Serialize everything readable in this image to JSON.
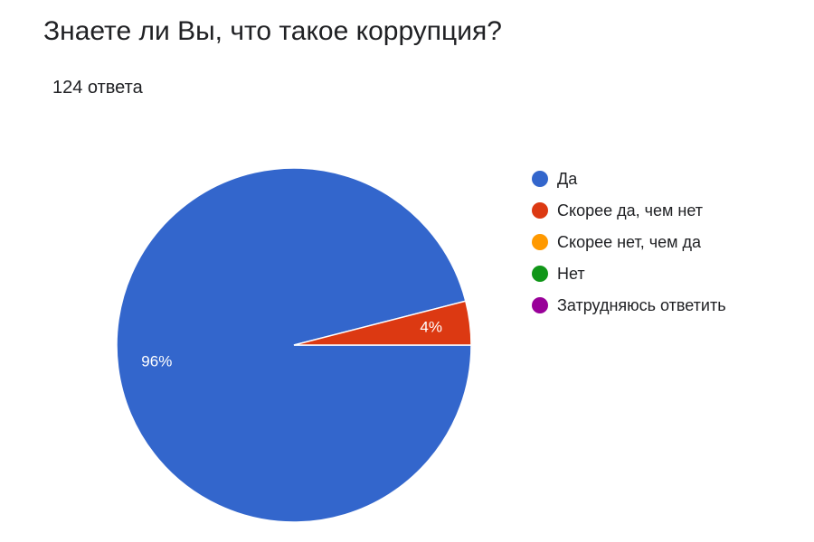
{
  "chart_data": {
    "type": "pie",
    "title": "Знаете ли Вы, что такое коррупция?",
    "subtitle": "124 ответа",
    "categories": [
      "Да",
      "Скорее да, чем нет",
      "Скорее нет, чем да",
      "Нет",
      "Затрудняюсь ответить"
    ],
    "values": [
      96,
      4,
      0,
      0,
      0
    ],
    "value_labels": [
      "96%",
      "4%",
      null,
      null,
      null
    ],
    "colors": [
      "#3366cc",
      "#dc3912",
      "#ff9900",
      "#109618",
      "#990099"
    ],
    "legend": "right"
  }
}
